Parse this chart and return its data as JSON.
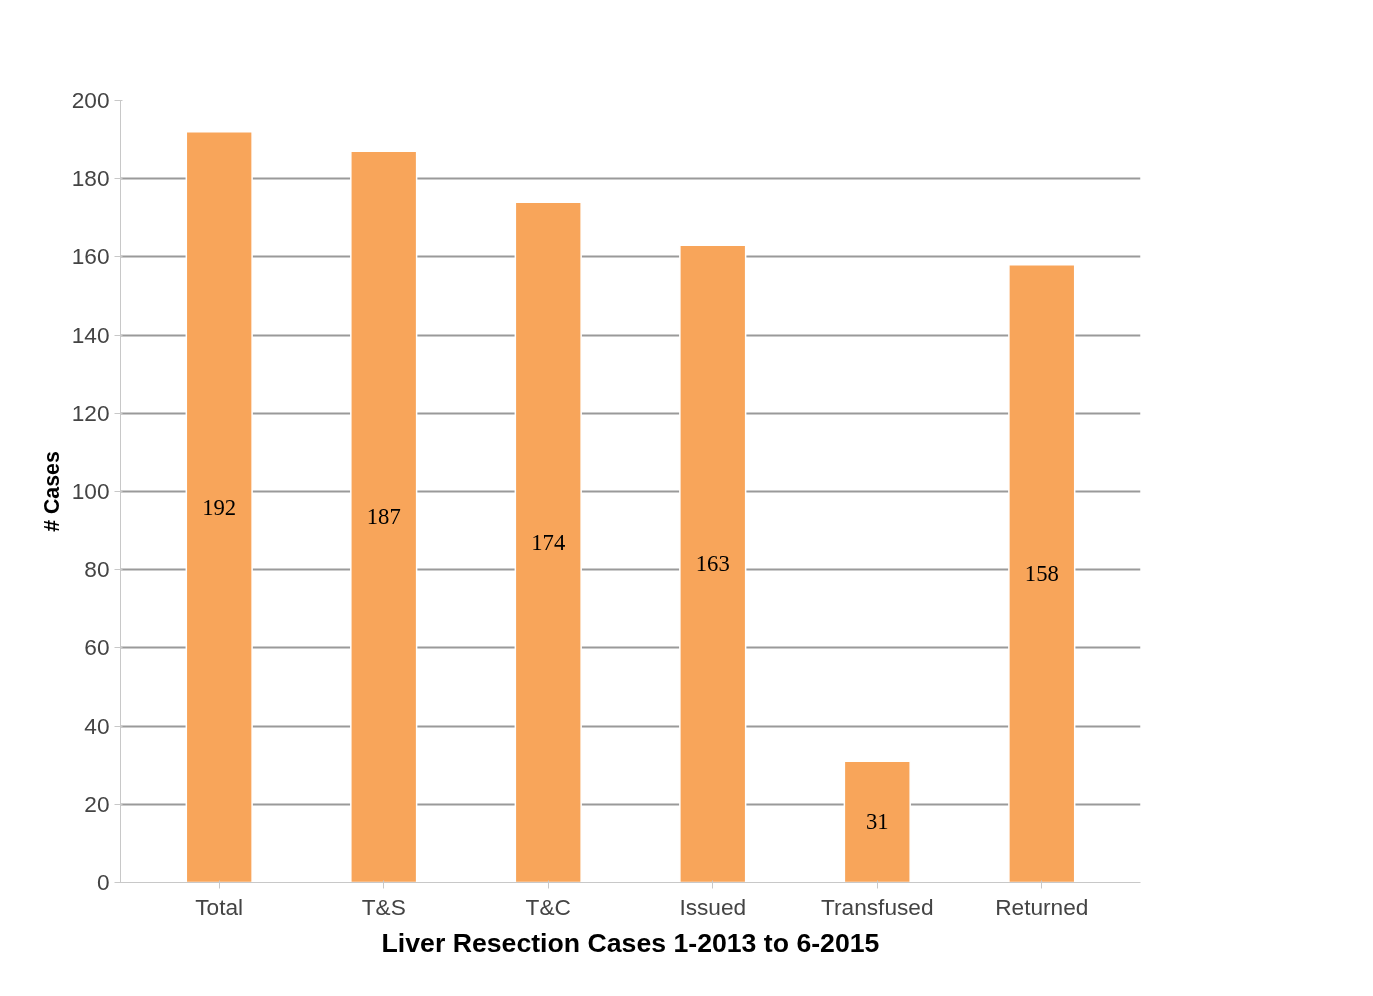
{
  "chart_data": {
    "type": "bar",
    "categories": [
      "Total",
      "T&S",
      "T&C",
      "Issued",
      "Transfused",
      "Returned"
    ],
    "values": [
      192,
      187,
      174,
      163,
      31,
      158
    ],
    "color": "#f8a55a",
    "xlabel": "Liver Resection Cases 1-2013 to 6-2015",
    "ylabel": "# Cases",
    "ylim": [
      0,
      200
    ],
    "yticks": [
      0,
      20,
      40,
      60,
      80,
      100,
      120,
      140,
      160,
      180,
      200
    ],
    "grid": "y",
    "data_labels": true
  }
}
